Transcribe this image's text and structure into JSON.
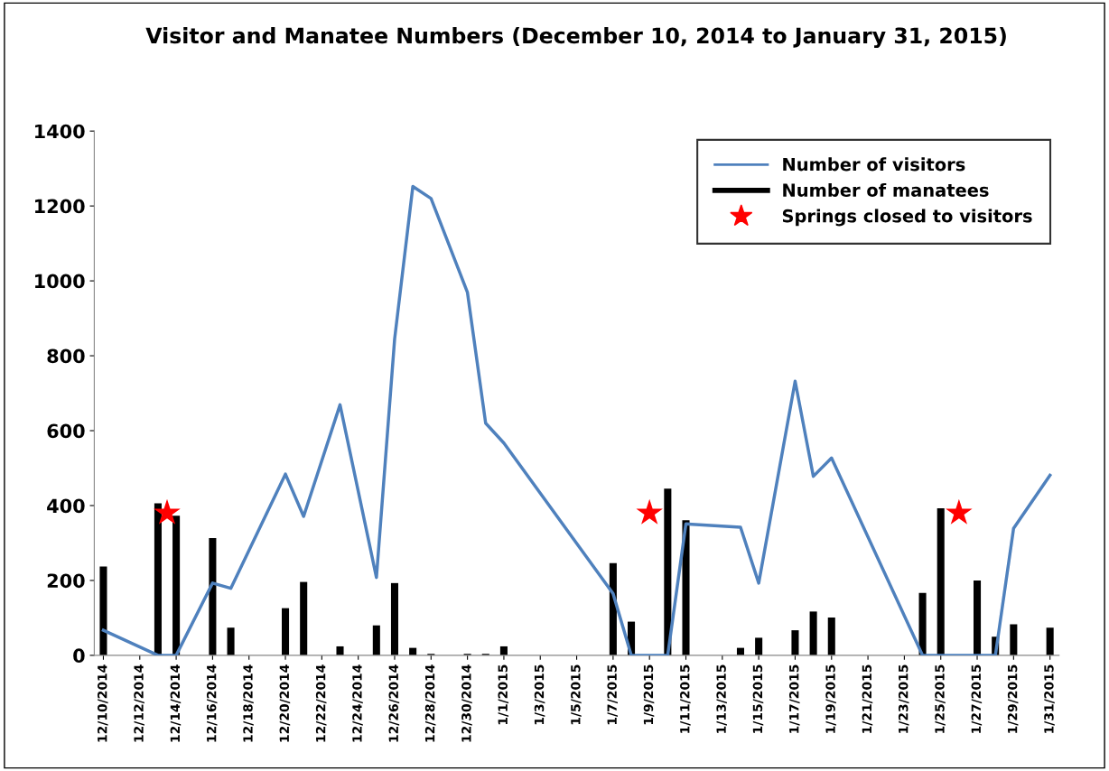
{
  "chart_data": {
    "type": "bar",
    "title": "Visitor and Manatee Numbers (December 10, 2014 to January 31, 2015)",
    "xlim": [
      "2014-12-09T12:00",
      "2015-01-31T12:00"
    ],
    "xticks": [
      {
        "value": "2014-12-10",
        "label": "12/10/2014"
      },
      {
        "value": "2014-12-12",
        "label": "12/12/2014"
      },
      {
        "value": "2014-12-14",
        "label": "12/14/2014"
      },
      {
        "value": "2014-12-16",
        "label": "12/16/2014"
      },
      {
        "value": "2014-12-18",
        "label": "12/18/2014"
      },
      {
        "value": "2014-12-20",
        "label": "12/20/2014"
      },
      {
        "value": "2014-12-22",
        "label": "12/22/2014"
      },
      {
        "value": "2014-12-24",
        "label": "12/24/2014"
      },
      {
        "value": "2014-12-26",
        "label": "12/26/2014"
      },
      {
        "value": "2014-12-28",
        "label": "12/28/2014"
      },
      {
        "value": "2014-12-30",
        "label": "12/30/2014"
      },
      {
        "value": "2015-01-01",
        "label": "1/1/2015"
      },
      {
        "value": "2015-01-03",
        "label": "1/3/2015"
      },
      {
        "value": "2015-01-05",
        "label": "1/5/2015"
      },
      {
        "value": "2015-01-07",
        "label": "1/7/2015"
      },
      {
        "value": "2015-01-09",
        "label": "1/9/2015"
      },
      {
        "value": "2015-01-11",
        "label": "1/11/2015"
      },
      {
        "value": "2015-01-13",
        "label": "1/13/2015"
      },
      {
        "value": "2015-01-15",
        "label": "1/15/2015"
      },
      {
        "value": "2015-01-17",
        "label": "1/17/2015"
      },
      {
        "value": "2015-01-19",
        "label": "1/19/2015"
      },
      {
        "value": "2015-01-21",
        "label": "1/21/2015"
      },
      {
        "value": "2015-01-23",
        "label": "1/23/2015"
      },
      {
        "value": "2015-01-25",
        "label": "1/25/2015"
      },
      {
        "value": "2015-01-27",
        "label": "1/27/2015"
      },
      {
        "value": "2015-01-29",
        "label": "1/29/2015"
      },
      {
        "value": "2015-01-31",
        "label": "1/31/2015"
      }
    ],
    "ylim": [
      0,
      1400
    ],
    "yticks": [
      0,
      200,
      400,
      600,
      800,
      1000,
      1200,
      1400
    ],
    "grid": false,
    "legend": "top right",
    "series": [
      {
        "name": "Number of manatees",
        "color": "#000000",
        "x": [
          "2014-12-10",
          "2014-12-13",
          "2014-12-14",
          "2014-12-16",
          "2014-12-17",
          "2014-12-20",
          "2014-12-21",
          "2014-12-23",
          "2014-12-25",
          "2014-12-26",
          "2014-12-27",
          "2014-12-28",
          "2014-12-30",
          "2014-12-31",
          "2015-01-01",
          "2015-01-07",
          "2015-01-08",
          "2015-01-10",
          "2015-01-11",
          "2015-01-14",
          "2015-01-15",
          "2015-01-17",
          "2015-01-18",
          "2015-01-19",
          "2015-01-24",
          "2015-01-25",
          "2015-01-27",
          "2015-01-28",
          "2015-01-29",
          "2015-01-31"
        ],
        "values": [
          237,
          406,
          373,
          313,
          74,
          126,
          196,
          24,
          80,
          193,
          20,
          4,
          4,
          4,
          24,
          246,
          90,
          445,
          361,
          20,
          47,
          67,
          117,
          101,
          167,
          393,
          200,
          50,
          83,
          74
        ]
      },
      {
        "name": "Number of visitors",
        "type": "line",
        "color": "#4f81bd",
        "marker": "none",
        "line_style": "solid",
        "x": [
          "2014-12-10",
          "2014-12-13",
          "2014-12-14",
          "2014-12-16",
          "2014-12-17",
          "2014-12-20",
          "2014-12-21",
          "2014-12-23",
          "2014-12-25",
          "2014-12-26",
          "2014-12-27",
          "2014-12-28",
          "2014-12-30",
          "2014-12-31",
          "2015-01-01",
          "2015-01-07",
          "2015-01-08",
          "2015-01-10",
          "2015-01-11",
          "2015-01-14",
          "2015-01-15",
          "2015-01-17",
          "2015-01-18",
          "2015-01-19",
          "2015-01-24",
          "2015-01-28",
          "2015-01-29",
          "2015-01-31"
        ],
        "values": [
          67,
          0,
          0,
          193,
          179,
          484,
          371,
          669,
          208,
          845,
          1252,
          1220,
          969,
          620,
          567,
          165,
          0,
          0,
          351,
          342,
          193,
          732,
          478,
          527,
          0,
          0,
          339,
          481
        ]
      },
      {
        "name": "Springs closed to visitors",
        "type": "scatter",
        "color": "#ff0000",
        "marker": "star",
        "x": [
          "2014-12-13T12:00",
          "2015-01-09",
          "2015-01-26"
        ],
        "values": [
          380,
          380,
          380
        ]
      }
    ]
  }
}
